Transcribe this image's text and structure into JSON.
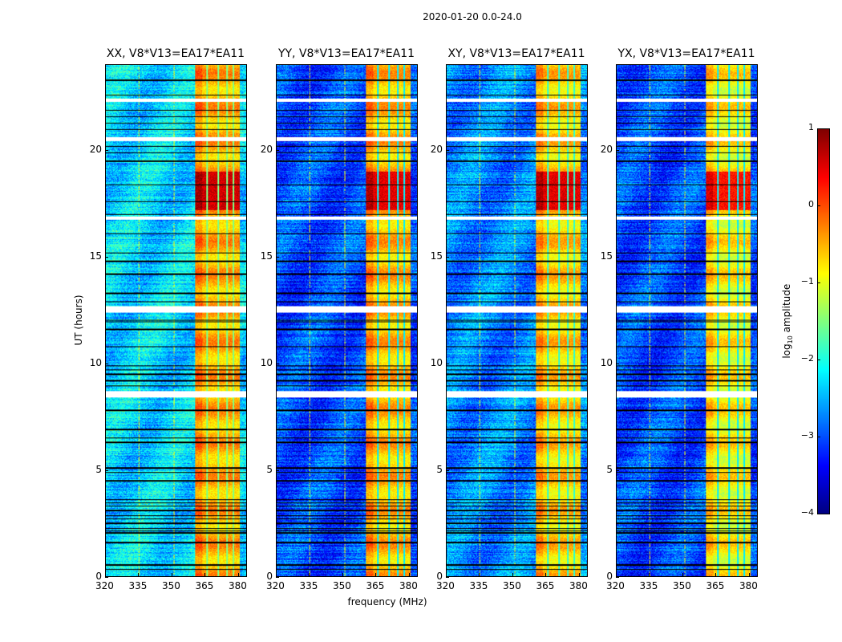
{
  "chart_data": {
    "type": "heatmap",
    "title": "2020-01-20 0.0-24.0",
    "xlabel": "frequency (MHz)",
    "ylabel": "UT (hours)",
    "xlim": [
      320,
      384
    ],
    "ylim": [
      0,
      24
    ],
    "xticks": [
      "320",
      "335",
      "350",
      "365",
      "380"
    ],
    "xtick_values": [
      320,
      335,
      350,
      365,
      380
    ],
    "yticks": [
      "0",
      "5",
      "10",
      "15",
      "20"
    ],
    "ytick_values": [
      0,
      5,
      10,
      15,
      20
    ],
    "colormap": "jet",
    "colorbar": {
      "label": "log10 amplitude",
      "label_main": "log",
      "label_sub": "10",
      "label_rest": " amplitude",
      "range": [
        -4,
        1
      ],
      "ticks": [
        "1",
        "0",
        "−1",
        "−2",
        "−3",
        "−4"
      ],
      "tick_values": [
        1,
        0,
        -1,
        -2,
        -3,
        -4
      ]
    },
    "rfi_band_mhz": [
      360.5,
      381
    ],
    "band_gaps_mhz": [
      366,
      371,
      375,
      378
    ],
    "peak_hours": [
      17.2,
      19.0
    ],
    "flagged_hours": [
      [
        8.4,
        8.7
      ],
      [
        12.4,
        12.7
      ],
      [
        16.75,
        16.9
      ],
      [
        20.45,
        20.65
      ],
      [
        22.3,
        22.45
      ]
    ],
    "dark_rows_hours": [
      0.35,
      0.55,
      1.6,
      2.05,
      2.15,
      2.25,
      2.5,
      2.7,
      2.85,
      3.1,
      3.3,
      3.45,
      3.6,
      4.5,
      4.9,
      5.1,
      6.3,
      6.5,
      6.9,
      7.8,
      8.95,
      9.2,
      9.5,
      9.7,
      9.9,
      10.8,
      11.6,
      11.95,
      12.05,
      12.9,
      13.3,
      14.2,
      14.8,
      15.2,
      16.1,
      17.0,
      17.6,
      18.4,
      19.5,
      19.9,
      20.2,
      21.0,
      21.3,
      21.6,
      21.9,
      22.6,
      23.3
    ],
    "panels": [
      {
        "title": "XX, V8*V13=EA17*EA11",
        "background": -2.3,
        "band": -0.5,
        "peak": 0.6
      },
      {
        "title": "YY, V8*V13=EA17*EA11",
        "background": -3.0,
        "band": -0.55,
        "peak": 0.5
      },
      {
        "title": "XY, V8*V13=EA17*EA11",
        "background": -2.7,
        "band": -0.65,
        "peak": 0.5
      },
      {
        "title": "YX, V8*V13=EA17*EA11",
        "background": -3.0,
        "band": -0.85,
        "peak": 0.3
      }
    ]
  }
}
